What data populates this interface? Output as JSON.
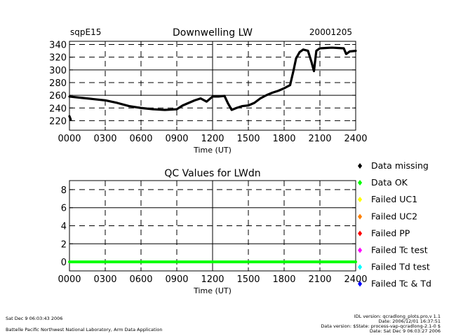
{
  "header": {
    "site": "sqpE15",
    "title": "Downwelling LW",
    "date": "20001205"
  },
  "footer": {
    "run_time": "Sat Dec  9 06:03:43 2006",
    "lab": "Battelle Pacific Northwest National Laboratory, Arm Data Application",
    "idl_version": "IDL version: qcradlong_plots.pro,v 1.1",
    "script_date": "Date: 2006/12/01 16:37:51",
    "data_version": "Data version: $State: process-vap-qcradlong-2.1-0 $",
    "data_date": "Date: Sat Dec  9 06:03:27 2006"
  },
  "legend": [
    {
      "label": "Data missing",
      "color": "#000000"
    },
    {
      "label": "Data OK",
      "color": "#00ff00"
    },
    {
      "label": "Failed UC1",
      "color": "#ffff00"
    },
    {
      "label": "Failed UC2",
      "color": "#ff8000"
    },
    {
      "label": "Failed PP",
      "color": "#ff0000"
    },
    {
      "label": "Failed Tc test",
      "color": "#ff00ff"
    },
    {
      "label": "Failed Td test",
      "color": "#00ffff"
    },
    {
      "label": "Failed Tc & Td",
      "color": "#0000ff"
    }
  ],
  "chart_data": [
    {
      "type": "line",
      "title": "Downwelling LW",
      "xlabel": "Time (UT)",
      "ylabel": "",
      "xlim": [
        0,
        2400
      ],
      "ylim": [
        205,
        345
      ],
      "xticks": [
        0,
        300,
        600,
        900,
        1200,
        1500,
        1800,
        2100,
        2400
      ],
      "xtick_labels": [
        "0000",
        "0300",
        "0600",
        "0900",
        "1200",
        "1500",
        "1800",
        "2100",
        "2400"
      ],
      "yticks": [
        220,
        240,
        260,
        280,
        300,
        320,
        340
      ],
      "ytick_labels": [
        "220",
        "240",
        "260",
        "280",
        "300",
        "320",
        "340"
      ],
      "grid": true,
      "series": [
        {
          "color": "#000000",
          "x": [
            0,
            100,
            200,
            300,
            400,
            500,
            600,
            700,
            800,
            900,
            950,
            1000,
            1050,
            1100,
            1150,
            1200,
            1250,
            1300,
            1330,
            1360,
            1400,
            1450,
            1500,
            1550,
            1600,
            1650,
            1700,
            1750,
            1800,
            1850,
            1880,
            1900,
            1930,
            1960,
            2000,
            2030,
            2050,
            2070,
            2100,
            2200,
            2300,
            2320,
            2350,
            2400
          ],
          "y": [
            258,
            256,
            254,
            252,
            248,
            243,
            240,
            238,
            237,
            238,
            244,
            248,
            252,
            255,
            250,
            258,
            258,
            259,
            247,
            237,
            240,
            243,
            244,
            248,
            255,
            260,
            264,
            267,
            271,
            276,
            300,
            318,
            328,
            332,
            330,
            312,
            298,
            330,
            334,
            335,
            334,
            325,
            329,
            330
          ]
        },
        {
          "color": "#000000",
          "x": [
            0,
            10
          ],
          "y": [
            227,
            222
          ]
        }
      ]
    },
    {
      "type": "line",
      "title": "QC Values for LWdn",
      "xlabel": "Time (UT)",
      "ylabel": "",
      "xlim": [
        0,
        2400
      ],
      "ylim": [
        -1,
        9
      ],
      "xticks": [
        0,
        300,
        600,
        900,
        1200,
        1500,
        1800,
        2100,
        2400
      ],
      "xtick_labels": [
        "0000",
        "0300",
        "0600",
        "0900",
        "1200",
        "1500",
        "1800",
        "2100",
        "2400"
      ],
      "yticks": [
        0,
        2,
        4,
        6,
        8
      ],
      "ytick_labels": [
        "0",
        "2",
        "4",
        "6",
        "8"
      ],
      "grid": true,
      "series": [
        {
          "color": "#00ff00",
          "x": [
            0,
            2400
          ],
          "y": [
            0,
            0
          ]
        }
      ]
    }
  ]
}
